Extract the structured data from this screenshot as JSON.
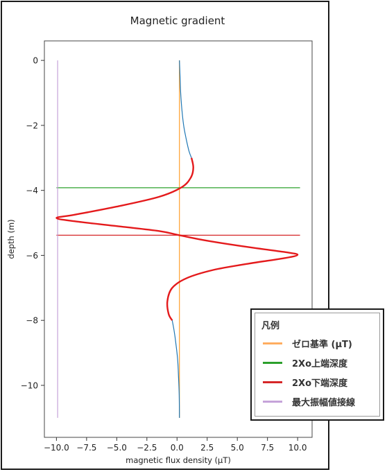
{
  "chart_data": {
    "type": "line",
    "title": "Magnetic gradient",
    "xlabel": "magnetic flux density (μT)",
    "ylabel": "depth (m)",
    "xlim": [
      -11.0,
      11.2
    ],
    "ylim": [
      -11.6,
      0.6
    ],
    "xticks": [
      -10.0,
      -7.5,
      -5.0,
      -2.5,
      0.0,
      2.5,
      5.0,
      7.5,
      10.0
    ],
    "xtick_labels": [
      "−10.0",
      "−7.5",
      "−5.0",
      "−2.5",
      "0.0",
      "2.5",
      "5.0",
      "7.5",
      "10.0"
    ],
    "yticks": [
      0,
      -2,
      -4,
      -6,
      -8,
      -10
    ],
    "ytick_labels": [
      "0",
      "−2",
      "−4",
      "−6",
      "−8",
      "−10"
    ],
    "grid": false,
    "legend_position": "bottom-right (outside plot)",
    "series": [
      {
        "name": "",
        "color": "#1f77b4",
        "points": [
          [
            0.2,
            0
          ],
          [
            0.25,
            -0.5
          ],
          [
            0.3,
            -1
          ],
          [
            0.4,
            -1.5
          ],
          [
            0.55,
            -2
          ],
          [
            0.75,
            -2.4
          ],
          [
            1.0,
            -2.8
          ],
          [
            1.2,
            -3.0
          ]
        ]
      },
      {
        "name": "",
        "color": "#e41a1c",
        "points": [
          [
            1.2,
            -3.0
          ],
          [
            1.35,
            -3.3
          ],
          [
            1.15,
            -3.6
          ],
          [
            0.4,
            -3.9
          ],
          [
            -1.5,
            -4.2
          ],
          [
            -5.0,
            -4.5
          ],
          [
            -8.5,
            -4.75
          ],
          [
            -10.0,
            -4.85
          ],
          [
            -8.5,
            -4.95
          ],
          [
            -5.0,
            -5.1
          ],
          [
            -1.5,
            -5.25
          ],
          [
            0.2,
            -5.38
          ],
          [
            2.5,
            -5.55
          ],
          [
            6.0,
            -5.75
          ],
          [
            9.0,
            -5.9
          ],
          [
            10.0,
            -5.98
          ],
          [
            9.0,
            -6.08
          ],
          [
            6.0,
            -6.25
          ],
          [
            3.0,
            -6.45
          ],
          [
            0.8,
            -6.7
          ],
          [
            -0.4,
            -7.0
          ],
          [
            -0.8,
            -7.4
          ],
          [
            -0.7,
            -7.8
          ],
          [
            -0.4,
            -8.0
          ]
        ]
      },
      {
        "name": "",
        "color": "#1f77b4",
        "points": [
          [
            -0.4,
            -8.0
          ],
          [
            -0.25,
            -8.3
          ],
          [
            -0.1,
            -8.7
          ],
          [
            0.05,
            -9.2
          ],
          [
            0.12,
            -9.7
          ],
          [
            0.18,
            -10.3
          ],
          [
            0.2,
            -11.0
          ]
        ]
      },
      {
        "name": "ゼロ基準 (μT)",
        "color": "#ff9e2c",
        "points": [
          [
            0.2,
            0
          ],
          [
            0.2,
            -11.0
          ]
        ]
      },
      {
        "name": "2Xo上端深度",
        "color": "#2ca02c",
        "points": [
          [
            -10.0,
            -3.92
          ],
          [
            10.2,
            -3.92
          ]
        ]
      },
      {
        "name": "2Xo下端深度",
        "color": "#d62728",
        "points": [
          [
            -10.0,
            -5.38
          ],
          [
            10.2,
            -5.38
          ]
        ]
      },
      {
        "name": "最大振幅値接線",
        "color": "#c5a3d9",
        "points": [
          [
            -9.9,
            0
          ],
          [
            -9.9,
            -11.0
          ]
        ]
      }
    ]
  },
  "legend": {
    "title": "凡例",
    "items": [
      {
        "label": "ゼロ基準 (μT)",
        "color": "#ffad60"
      },
      {
        "label": "2Xo上端深度",
        "color": "#2ca02c"
      },
      {
        "label": "2Xo下端深度",
        "color": "#d62728"
      },
      {
        "label": "最大振幅値接線",
        "color": "#c5a3d9"
      }
    ]
  }
}
